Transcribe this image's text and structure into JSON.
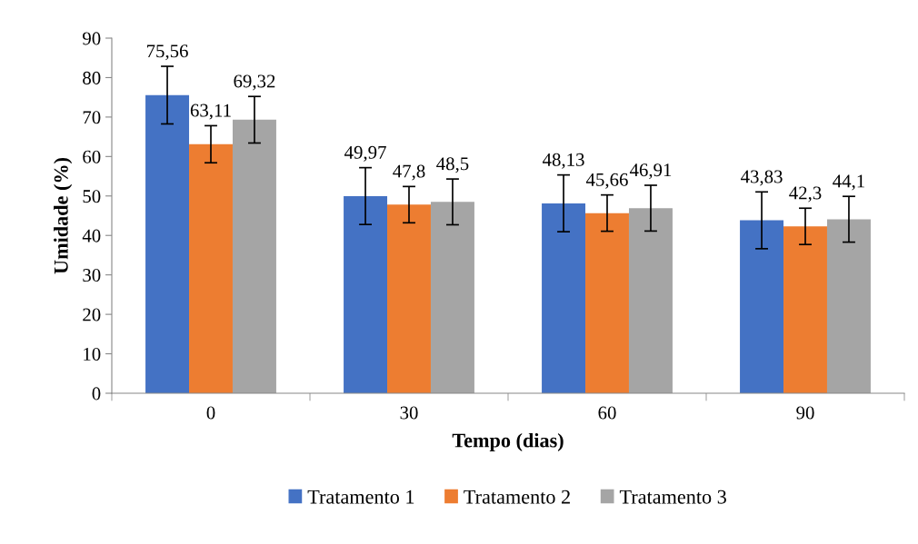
{
  "chart_data": {
    "type": "bar",
    "xlabel": "Tempo (dias)",
    "ylabel": "Umidade (%)",
    "categories": [
      "0",
      "30",
      "60",
      "90"
    ],
    "series": [
      {
        "name": "Tratamento 1",
        "color": "#4472c4",
        "values": [
          75.56,
          49.97,
          48.13,
          43.83
        ],
        "value_labels": [
          "75,56",
          "49,97",
          "48,13",
          "43,83"
        ],
        "errors": [
          7.3,
          7.2,
          7.2,
          7.2
        ]
      },
      {
        "name": "Tratamento 2",
        "color": "#ed7d31",
        "values": [
          63.11,
          47.8,
          45.66,
          42.3
        ],
        "value_labels": [
          "63,11",
          "47,8",
          "45,66",
          "42,3"
        ],
        "errors": [
          4.7,
          4.6,
          4.6,
          4.6
        ]
      },
      {
        "name": "Tratamento 3",
        "color": "#a5a5a5",
        "values": [
          69.32,
          48.5,
          46.91,
          44.1
        ],
        "value_labels": [
          "69,32",
          "48,5",
          "46,91",
          "44,1"
        ],
        "errors": [
          5.9,
          5.8,
          5.8,
          5.8
        ]
      }
    ],
    "ylim": [
      0,
      90
    ],
    "yticks": [
      0,
      10,
      20,
      30,
      40,
      50,
      60,
      70,
      80,
      90
    ],
    "grid": false,
    "legend": "bottom"
  }
}
